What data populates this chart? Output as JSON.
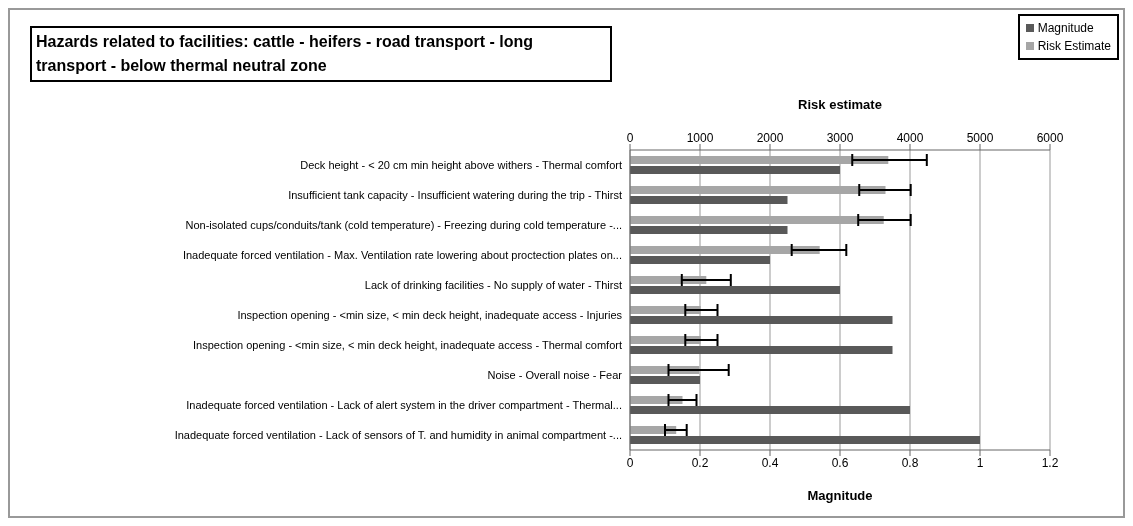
{
  "chart_data": {
    "type": "bar",
    "orientation": "horizontal",
    "title": "Hazards related to facilities: cattle - heifers - road transport - long transport - below thermal neutral zone",
    "xlabel": "Magnitude",
    "x2label": "Risk estimate",
    "categories": [
      "Deck height - < 20 cm min height above withers - Thermal comfort",
      "Insufficient tank capacity - Insufficient watering during the trip - Thirst",
      "Non-isolated cups/conduits/tank (cold temperature) - Freezing during cold temperature -...",
      "Inadequate forced ventilation - Max. Ventilation rate lowering about proctection plates on...",
      "Lack of drinking facilities - No supply of water - Thirst",
      "Inspection opening - <min size, < min deck height, inadequate access - Injuries",
      "Inspection opening - <min size, < min deck height, inadequate access - Thermal comfort",
      "Noise - Overall noise - Fear",
      "Inadequate forced ventilation - Lack of alert system in the driver compartment - Thermal...",
      "Inadequate forced ventilation - Lack of sensors of T. and humidity in animal compartment -..."
    ],
    "series": [
      {
        "name": "Magnitude",
        "color": "#595959",
        "values": [
          0.6,
          0.45,
          0.45,
          0.4,
          0.6,
          0.75,
          0.75,
          0.2,
          0.8,
          1.0
        ]
      },
      {
        "name": "Risk Estimate",
        "color": "#a6a6a6",
        "axis": "x2",
        "values": [
          3690,
          3650,
          3625,
          2710,
          1090,
          1010,
          1010,
          990,
          750,
          660
        ],
        "errors": [
          [
            3175,
            4240
          ],
          [
            3275,
            4010
          ],
          [
            3260,
            4010
          ],
          [
            2310,
            3090
          ],
          [
            740,
            1440
          ],
          [
            790,
            1250
          ],
          [
            790,
            1250
          ],
          [
            550,
            1410
          ],
          [
            550,
            950
          ],
          [
            500,
            810
          ]
        ]
      }
    ],
    "xlim": [
      0,
      1.2
    ],
    "xticks": [
      0,
      0.2,
      0.4,
      0.6,
      0.8,
      1,
      1.2
    ],
    "x2lim": [
      0,
      6000
    ],
    "x2ticks": [
      0,
      1000,
      2000,
      3000,
      4000,
      5000,
      6000
    ],
    "grid": "x",
    "legend": "top right"
  }
}
